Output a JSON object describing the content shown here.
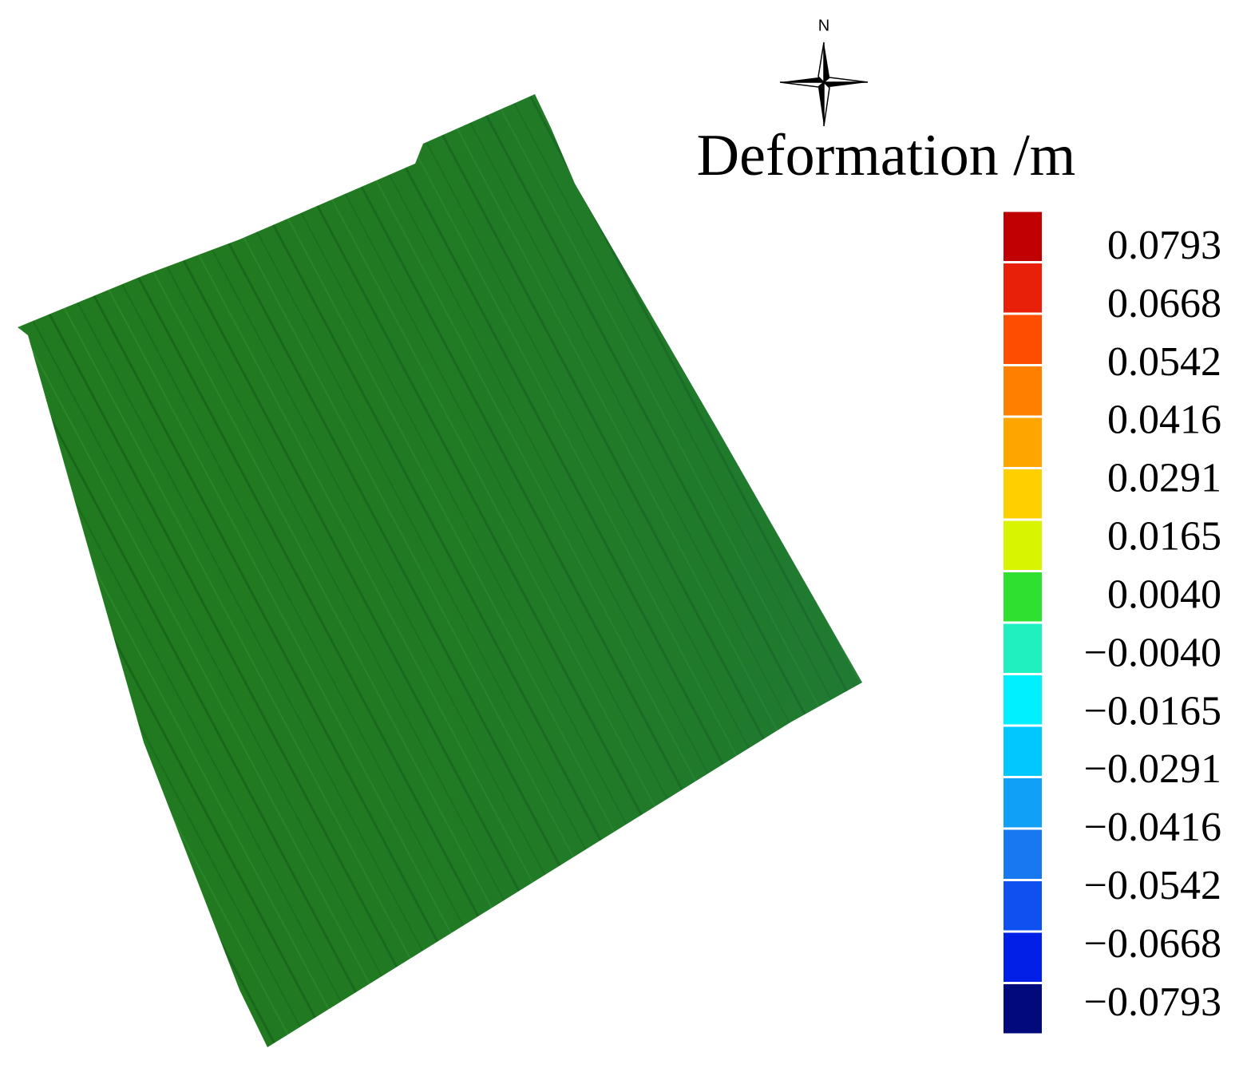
{
  "compass": {
    "label": "N"
  },
  "legend": {
    "title": "Deformation /m",
    "labels": [
      "0.0793",
      "0.0668",
      "0.0542",
      "0.0416",
      "0.0291",
      "0.0165",
      "0.0040",
      "−0.0040",
      "−0.0165",
      "−0.0291",
      "−0.0416",
      "−0.0542",
      "−0.0668",
      "−0.0793"
    ],
    "colors": [
      "#c00000",
      "#e8200a",
      "#ff4d00",
      "#ff7f00",
      "#ffa500",
      "#ffd000",
      "#d8f400",
      "#30e030",
      "#20f0c0",
      "#00f0ff",
      "#00c8ff",
      "#10a0f8",
      "#1878f0",
      "#1050f0",
      "#0020e8",
      "#000a7a"
    ]
  }
}
